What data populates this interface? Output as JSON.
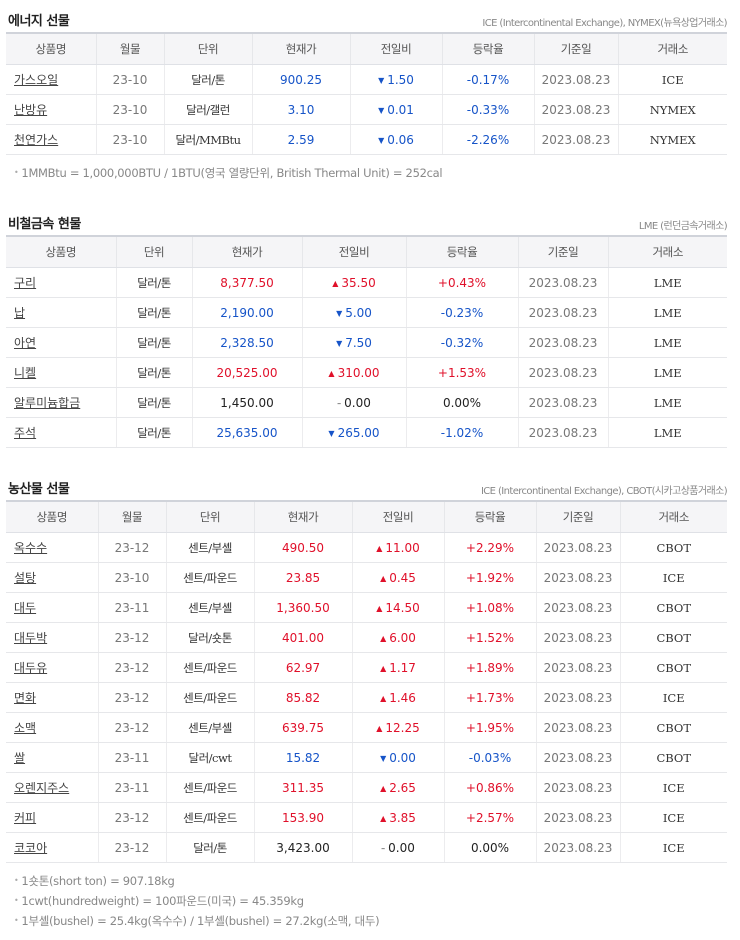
{
  "sections": [
    {
      "title": "에너지 선물",
      "source": "ICE (Intercontinental Exchange), NYMEX(뉴욕상업거래소)",
      "columns": [
        "상품명",
        "월물",
        "단위",
        "현재가",
        "전일비",
        "등락율",
        "기준일",
        "거래소"
      ],
      "rows": [
        {
          "name": "가스오일",
          "month": "23-10",
          "unit": "달러/톤",
          "price": "900.25",
          "dir": "down",
          "change": "1.50",
          "rate": "-0.17%",
          "date": "2023.08.23",
          "exchange": "ICE"
        },
        {
          "name": "난방유",
          "month": "23-10",
          "unit": "달러/갤런",
          "price": "3.10",
          "dir": "down",
          "change": "0.01",
          "rate": "-0.33%",
          "date": "2023.08.23",
          "exchange": "NYMEX"
        },
        {
          "name": "천연가스",
          "month": "23-10",
          "unit": "달러/MMBtu",
          "price": "2.59",
          "dir": "down",
          "change": "0.06",
          "rate": "-2.26%",
          "date": "2023.08.23",
          "exchange": "NYMEX"
        }
      ],
      "notes": [
        "1MMBtu = 1,000,000BTU / 1BTU(영국 열량단위, British Thermal Unit) = 252cal"
      ]
    },
    {
      "title": "비철금속 현물",
      "source": "LME (런던금속거래소)",
      "columns": [
        "상품명",
        "단위",
        "현재가",
        "전일비",
        "등락율",
        "기준일",
        "거래소"
      ],
      "rows": [
        {
          "name": "구리",
          "unit": "달러/톤",
          "price": "8,377.50",
          "dir": "up",
          "change": "35.50",
          "rate": "+0.43%",
          "date": "2023.08.23",
          "exchange": "LME"
        },
        {
          "name": "납",
          "unit": "달러/톤",
          "price": "2,190.00",
          "dir": "down",
          "change": "5.00",
          "rate": "-0.23%",
          "date": "2023.08.23",
          "exchange": "LME"
        },
        {
          "name": "아연",
          "unit": "달러/톤",
          "price": "2,328.50",
          "dir": "down",
          "change": "7.50",
          "rate": "-0.32%",
          "date": "2023.08.23",
          "exchange": "LME"
        },
        {
          "name": "니켈",
          "unit": "달러/톤",
          "price": "20,525.00",
          "dir": "up",
          "change": "310.00",
          "rate": "+1.53%",
          "date": "2023.08.23",
          "exchange": "LME"
        },
        {
          "name": "알루미늄합금",
          "unit": "달러/톤",
          "price": "1,450.00",
          "dir": "flat",
          "change": "0.00",
          "rate": "0.00%",
          "date": "2023.08.23",
          "exchange": "LME"
        },
        {
          "name": "주석",
          "unit": "달러/톤",
          "price": "25,635.00",
          "dir": "down",
          "change": "265.00",
          "rate": "-1.02%",
          "date": "2023.08.23",
          "exchange": "LME"
        }
      ],
      "notes": []
    },
    {
      "title": "농산물 선물",
      "source": "ICE (Intercontinental Exchange), CBOT(시카고상품거래소)",
      "columns": [
        "상품명",
        "월물",
        "단위",
        "현재가",
        "전일비",
        "등락율",
        "기준일",
        "거래소"
      ],
      "rows": [
        {
          "name": "옥수수",
          "month": "23-12",
          "unit": "센트/부셸",
          "price": "490.50",
          "dir": "up",
          "change": "11.00",
          "rate": "+2.29%",
          "date": "2023.08.23",
          "exchange": "CBOT"
        },
        {
          "name": "설탕",
          "month": "23-10",
          "unit": "센트/파운드",
          "price": "23.85",
          "dir": "up",
          "change": "0.45",
          "rate": "+1.92%",
          "date": "2023.08.23",
          "exchange": "ICE"
        },
        {
          "name": "대두",
          "month": "23-11",
          "unit": "센트/부셸",
          "price": "1,360.50",
          "dir": "up",
          "change": "14.50",
          "rate": "+1.08%",
          "date": "2023.08.23",
          "exchange": "CBOT"
        },
        {
          "name": "대두박",
          "month": "23-12",
          "unit": "달러/숏톤",
          "price": "401.00",
          "dir": "up",
          "change": "6.00",
          "rate": "+1.52%",
          "date": "2023.08.23",
          "exchange": "CBOT"
        },
        {
          "name": "대두유",
          "month": "23-12",
          "unit": "센트/파운드",
          "price": "62.97",
          "dir": "up",
          "change": "1.17",
          "rate": "+1.89%",
          "date": "2023.08.23",
          "exchange": "CBOT"
        },
        {
          "name": "면화",
          "month": "23-12",
          "unit": "센트/파운드",
          "price": "85.82",
          "dir": "up",
          "change": "1.46",
          "rate": "+1.73%",
          "date": "2023.08.23",
          "exchange": "ICE"
        },
        {
          "name": "소맥",
          "month": "23-12",
          "unit": "센트/부셸",
          "price": "639.75",
          "dir": "up",
          "change": "12.25",
          "rate": "+1.95%",
          "date": "2023.08.23",
          "exchange": "CBOT"
        },
        {
          "name": "쌀",
          "month": "23-11",
          "unit": "달러/cwt",
          "price": "15.82",
          "dir": "down",
          "change": "0.00",
          "rate": "-0.03%",
          "date": "2023.08.23",
          "exchange": "CBOT"
        },
        {
          "name": "오렌지주스",
          "month": "23-11",
          "unit": "센트/파운드",
          "price": "311.35",
          "dir": "up",
          "change": "2.65",
          "rate": "+0.86%",
          "date": "2023.08.23",
          "exchange": "ICE"
        },
        {
          "name": "커피",
          "month": "23-12",
          "unit": "센트/파운드",
          "price": "153.90",
          "dir": "up",
          "change": "3.85",
          "rate": "+2.57%",
          "date": "2023.08.23",
          "exchange": "ICE"
        },
        {
          "name": "코코아",
          "month": "23-12",
          "unit": "달러/톤",
          "price": "3,423.00",
          "dir": "flat",
          "change": "0.00",
          "rate": "0.00%",
          "date": "2023.08.23",
          "exchange": "ICE"
        }
      ],
      "notes": [
        "1숏톤(short ton) = 907.18kg",
        "1cwt(hundredweight) = 100파운드(미국) = 45.359kg",
        "1부셸(bushel) = 25.4kg(옥수수) / 1부셸(bushel) = 27.2kg(소맥, 대두)"
      ]
    }
  ],
  "colors": {
    "up": "#e0102a",
    "down": "#1654c8",
    "flat": "#222222",
    "header_bg": "#f5f5f7"
  }
}
